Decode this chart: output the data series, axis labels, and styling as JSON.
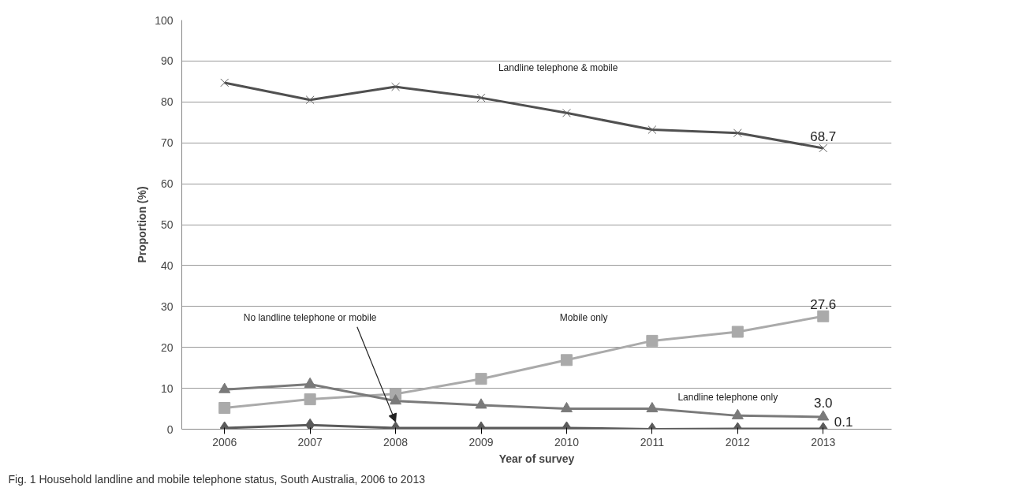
{
  "chart_data": {
    "type": "line",
    "xlabel": "Year of survey",
    "ylabel": "Proportion (%)",
    "categories": [
      "2006",
      "2007",
      "2008",
      "2009",
      "2010",
      "2011",
      "2012",
      "2013"
    ],
    "series": [
      {
        "name": "Landline telephone & mobile",
        "color": "#505050",
        "marker": "cross",
        "values": [
          84.7,
          80.5,
          83.7,
          81.0,
          77.3,
          73.2,
          72.4,
          68.7
        ],
        "value_labels": [
          null,
          null,
          null,
          null,
          null,
          null,
          null,
          "68.7"
        ]
      },
      {
        "name": "Mobile only",
        "color": "#aaaaaa",
        "marker": "square",
        "values": [
          5.2,
          7.3,
          8.6,
          12.3,
          16.9,
          21.6,
          23.8,
          27.6
        ],
        "value_labels": [
          null,
          null,
          null,
          null,
          null,
          null,
          null,
          "27.6"
        ]
      },
      {
        "name": "Landline telephone only",
        "color": "#7a7a7a",
        "marker": "triangle",
        "values": [
          9.7,
          11.0,
          6.9,
          5.9,
          5.0,
          5.0,
          3.3,
          3.0
        ],
        "value_labels": [
          null,
          null,
          null,
          null,
          null,
          null,
          null,
          "3.0"
        ]
      },
      {
        "name": "No landline telephone or mobile",
        "color": "#5a5a5a",
        "marker": "diamond",
        "values": [
          0.3,
          1.0,
          0.3,
          0.3,
          0.3,
          0.0,
          0.1,
          0.1
        ],
        "value_labels": [
          null,
          null,
          null,
          null,
          null,
          null,
          null,
          "0.1"
        ]
      }
    ],
    "ylim": [
      0,
      100
    ],
    "yticks": [
      0,
      10,
      20,
      30,
      40,
      50,
      60,
      70,
      80,
      90,
      100
    ],
    "grid": "y",
    "line_style": "solid",
    "annotations": [
      "Fig. 1 Household landline and mobile telephone status, South Australia, 2006 to 2013"
    ]
  }
}
